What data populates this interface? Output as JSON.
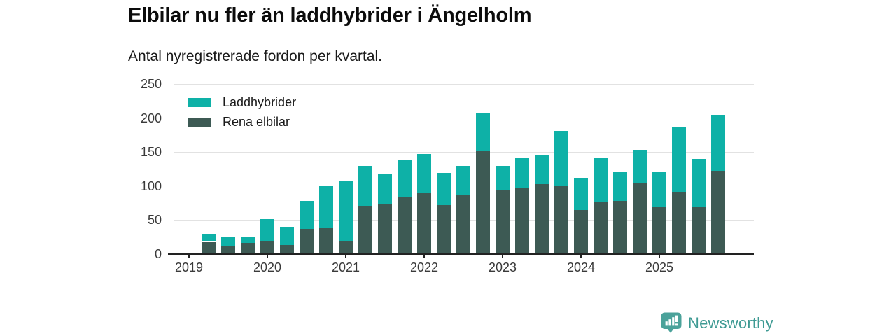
{
  "header": {
    "title": "Elbilar nu fler än laddhybrider i Ängelholm",
    "subtitle": "Antal nyregistrerade fordon per kvartal."
  },
  "chart_data": {
    "type": "bar",
    "stacked": true,
    "title": "Elbilar nu fler än laddhybrider i Ängelholm",
    "subtitle": "Antal nyregistrerade fordon per kvartal.",
    "categories": [
      "2019 Q2",
      "2019 Q3",
      "2019 Q4",
      "2020 Q1",
      "2020 Q2",
      "2020 Q3",
      "2020 Q4",
      "2021 Q1",
      "2021 Q2",
      "2021 Q3",
      "2021 Q4",
      "2022 Q1",
      "2022 Q2",
      "2022 Q3",
      "2022 Q4",
      "2023 Q1",
      "2023 Q2",
      "2023 Q3",
      "2023 Q4",
      "2024 Q1",
      "2024 Q2",
      "2024 Q3",
      "2024 Q4",
      "2025 Q1",
      "2025 Q2",
      "2025 Q3",
      "2025 Q4"
    ],
    "series": [
      {
        "name": "Laddhybrider",
        "color": "#0eb1a7",
        "values": [
          12,
          14,
          10,
          31,
          27,
          41,
          61,
          87,
          59,
          44,
          55,
          58,
          47,
          44,
          56,
          36,
          43,
          43,
          80,
          47,
          64,
          42,
          49,
          50,
          94,
          70,
          83
        ]
      },
      {
        "name": "Rena elbilar",
        "color": "#3d5a54",
        "values": [
          18,
          12,
          16,
          20,
          13,
          37,
          39,
          20,
          71,
          74,
          83,
          89,
          72,
          86,
          151,
          94,
          98,
          103,
          101,
          65,
          77,
          78,
          104,
          70,
          92,
          70,
          122
        ]
      }
    ],
    "stack_bottom_to_top": [
      "Rena elbilar",
      "Laddhybrider"
    ],
    "ylim": [
      0,
      250
    ],
    "y_ticks": [
      0,
      50,
      100,
      150,
      200,
      250
    ],
    "x_tick_labels": [
      "2019",
      "2020",
      "2021",
      "2022",
      "2023",
      "2024",
      "2025"
    ],
    "grid": "horizontal",
    "legend_position": "top-left-inside"
  },
  "footer": {
    "brand": "Newsworthy",
    "brand_text_color": "#3e9a93",
    "brand_icon_color": "#4ba29a"
  }
}
